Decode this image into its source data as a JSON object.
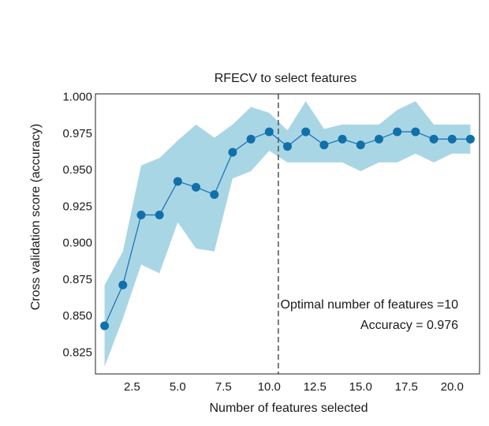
{
  "chart_data": {
    "type": "line",
    "title": "RFECV to  select features",
    "xlabel": "Number of features selected",
    "ylabel": "Cross validation score (accuracy)",
    "xlim": [
      0.5,
      21.5
    ],
    "ylim": [
      0.81,
      1.002
    ],
    "xticks": [
      2.5,
      5.0,
      7.5,
      10.0,
      12.5,
      15.0,
      17.5,
      20.0
    ],
    "xtick_labels": [
      "2.5",
      "5.0",
      "7.5",
      "10.0",
      "12.5",
      "15.0",
      "17.5",
      "20.0"
    ],
    "yticks": [
      0.825,
      0.85,
      0.875,
      0.9,
      0.925,
      0.95,
      0.975,
      1.0
    ],
    "ytick_labels": [
      "0.825",
      "0.850",
      "0.875",
      "0.900",
      "0.925",
      "0.950",
      "0.975",
      "1.000"
    ],
    "grid": false,
    "x": [
      1,
      2,
      3,
      4,
      5,
      6,
      7,
      8,
      9,
      10,
      11,
      12,
      13,
      14,
      15,
      16,
      17,
      18,
      19,
      20,
      21
    ],
    "series": [
      {
        "values": [
          0.843,
          0.871,
          0.919,
          0.919,
          0.942,
          0.938,
          0.933,
          0.962,
          0.971,
          0.976,
          0.966,
          0.976,
          0.967,
          0.971,
          0.967,
          0.971,
          0.976,
          0.976,
          0.971,
          0.971,
          0.971
        ],
        "lower": [
          0.815,
          0.848,
          0.885,
          0.879,
          0.914,
          0.896,
          0.894,
          0.944,
          0.949,
          0.963,
          0.955,
          0.955,
          0.955,
          0.955,
          0.949,
          0.955,
          0.955,
          0.961,
          0.955,
          0.961,
          0.961
        ],
        "upper": [
          0.871,
          0.894,
          0.953,
          0.958,
          0.97,
          0.981,
          0.972,
          0.981,
          0.993,
          0.989,
          0.977,
          0.997,
          0.978,
          0.981,
          0.981,
          0.981,
          0.991,
          0.997,
          0.981,
          0.981,
          0.981
        ],
        "color": "#1f77b4",
        "band_color": "#a9d6e5"
      }
    ],
    "vline": {
      "x": 10.5,
      "style": "dashed",
      "color": "#444444"
    },
    "annotations": [
      "Optimal number of features =10",
      "Accuracy = 0.976"
    ]
  }
}
